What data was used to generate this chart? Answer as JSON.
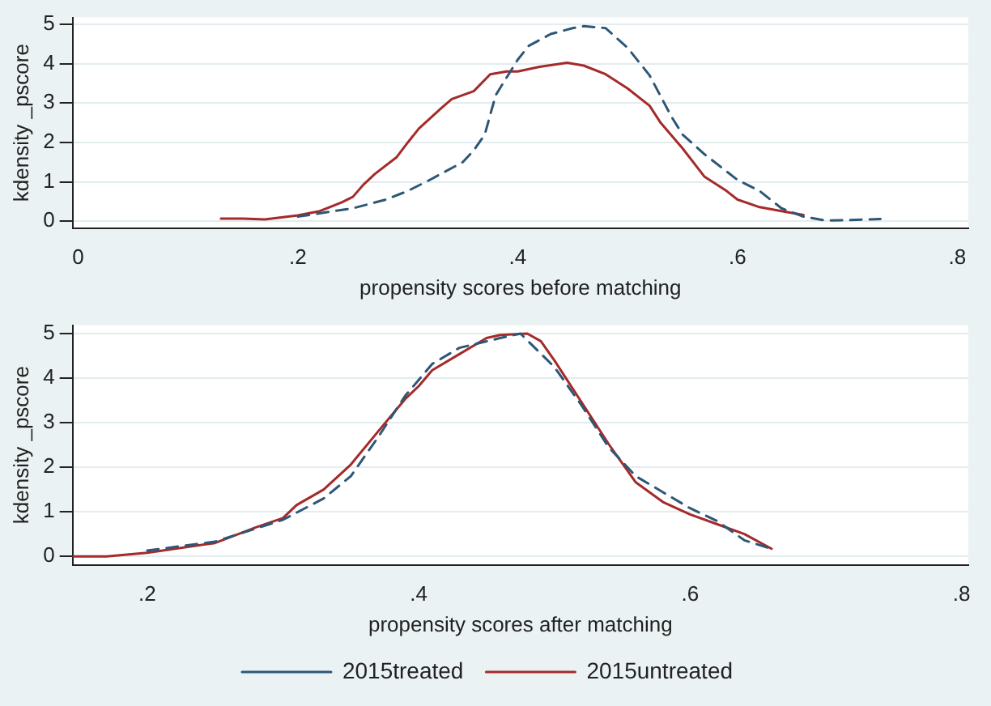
{
  "chart_data": [
    {
      "type": "line",
      "xlabel": "propensity scores before matching",
      "ylabel": "kdensity _pscore",
      "xlim": [
        -0.005,
        0.81
      ],
      "ylim": [
        -0.17,
        5.17
      ],
      "xticks": [
        0,
        {
          "value": 0.2,
          "label": ".2"
        },
        {
          "value": 0.4,
          "label": ".4"
        },
        {
          "value": 0.6,
          "label": ".6"
        },
        {
          "value": 0.8,
          "label": ".8"
        }
      ],
      "yticks": [
        0,
        1,
        2,
        3,
        4,
        5
      ],
      "grid": "y",
      "legend": false,
      "marker": "none",
      "series": [
        {
          "color": "#2d5777",
          "line_style": "dashed",
          "x": [
            0.2,
            0.25,
            0.28,
            0.3,
            0.32,
            0.35,
            0.36,
            0.37,
            0.38,
            0.4,
            0.41,
            0.43,
            0.45,
            0.46,
            0.48,
            0.5,
            0.52,
            0.54,
            0.55,
            0.57,
            0.6,
            0.62,
            0.64,
            0.66,
            0.68,
            0.7,
            0.73
          ],
          "values": [
            0.12,
            0.33,
            0.55,
            0.77,
            1.05,
            1.5,
            1.8,
            2.2,
            3.2,
            4.1,
            4.45,
            4.75,
            4.9,
            4.95,
            4.9,
            4.4,
            3.7,
            2.65,
            2.2,
            1.7,
            1.05,
            0.77,
            0.33,
            0.12,
            0.02,
            0.03,
            0.06
          ]
        },
        {
          "color": "#a52a2a",
          "line_style": "solid",
          "x": [
            0.13,
            0.15,
            0.17,
            0.2,
            0.22,
            0.24,
            0.25,
            0.26,
            0.27,
            0.29,
            0.3,
            0.31,
            0.33,
            0.34,
            0.36,
            0.375,
            0.39,
            0.4,
            0.42,
            0.445,
            0.46,
            0.48,
            0.5,
            0.52,
            0.53,
            0.55,
            0.57,
            0.59,
            0.6,
            0.62,
            0.64,
            0.66
          ],
          "values": [
            0.07,
            0.07,
            0.05,
            0.15,
            0.26,
            0.48,
            0.62,
            0.94,
            1.2,
            1.63,
            2.0,
            2.35,
            2.86,
            3.1,
            3.3,
            3.73,
            3.8,
            3.8,
            3.92,
            4.02,
            3.95,
            3.73,
            3.37,
            2.93,
            2.5,
            1.85,
            1.13,
            0.77,
            0.55,
            0.36,
            0.26,
            0.16
          ]
        }
      ]
    },
    {
      "type": "line",
      "xlabel": "propensity scores after matching",
      "ylabel": "kdensity _pscore",
      "xlim": [
        0.145,
        0.805
      ],
      "ylim": [
        -0.19,
        5.19
      ],
      "xticks": [
        {
          "value": 0.2,
          "label": ".2"
        },
        {
          "value": 0.4,
          "label": ".4"
        },
        {
          "value": 0.6,
          "label": ".6"
        },
        {
          "value": 0.8,
          "label": ".8"
        }
      ],
      "yticks": [
        0,
        1,
        2,
        3,
        4,
        5
      ],
      "grid": "y",
      "legend": "bottom",
      "marker": "none",
      "series": [
        {
          "name": "2015treated",
          "color": "#2d5777",
          "line_style": "dashed",
          "x": [
            0.2,
            0.25,
            0.3,
            0.33,
            0.35,
            0.37,
            0.39,
            0.41,
            0.43,
            0.46,
            0.475,
            0.5,
            0.52,
            0.54,
            0.56,
            0.58,
            0.6,
            0.62,
            0.64,
            0.66
          ],
          "values": [
            0.13,
            0.33,
            0.82,
            1.3,
            1.8,
            2.67,
            3.6,
            4.32,
            4.68,
            4.9,
            5.0,
            4.25,
            3.39,
            2.45,
            1.8,
            1.44,
            1.08,
            0.79,
            0.36,
            0.17
          ]
        },
        {
          "name": "2015untreated",
          "color": "#a52a2a",
          "line_style": "solid",
          "x": [
            0.145,
            0.17,
            0.2,
            0.25,
            0.28,
            0.3,
            0.31,
            0.33,
            0.35,
            0.37,
            0.39,
            0.4,
            0.41,
            0.43,
            0.45,
            0.46,
            0.48,
            0.49,
            0.5,
            0.52,
            0.54,
            0.56,
            0.58,
            0.6,
            0.62,
            0.64,
            0.66
          ],
          "values": [
            0,
            0,
            0.08,
            0.3,
            0.65,
            0.86,
            1.15,
            1.5,
            2.06,
            2.8,
            3.53,
            3.82,
            4.18,
            4.54,
            4.9,
            4.97,
            5.0,
            4.83,
            4.4,
            3.46,
            2.52,
            1.66,
            1.22,
            0.94,
            0.72,
            0.5,
            0.17
          ]
        }
      ]
    }
  ]
}
